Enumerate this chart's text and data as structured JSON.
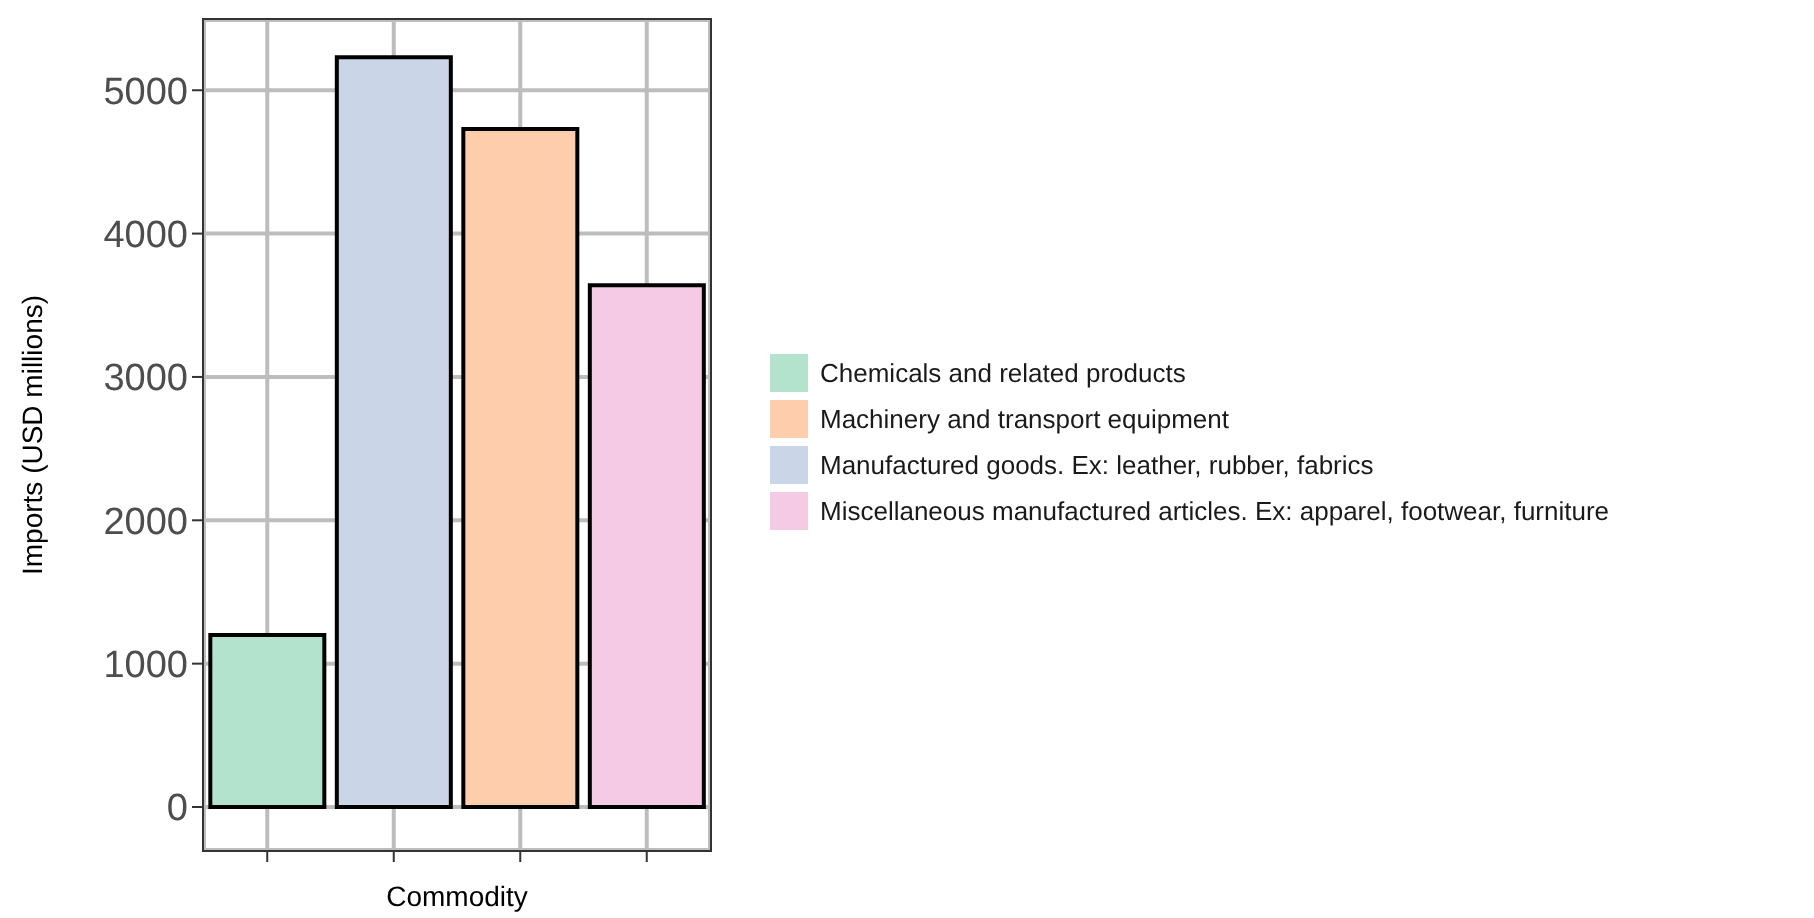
{
  "chart_data": {
    "type": "bar",
    "xlabel": "Commodity",
    "ylabel": "Imports (USD millions)",
    "categories": [
      null,
      null,
      null,
      null
    ],
    "stacked": true,
    "series": [
      {
        "name": "Chemicals and related products",
        "color": "#b3e2cd",
        "values": [
          1200,
          null,
          null,
          null
        ]
      },
      {
        "name": "Machinery and transport equipment",
        "color": "#fdcdac",
        "values": [
          null,
          null,
          4730,
          null
        ]
      },
      {
        "name": "Manufactured goods. Ex: leather, rubber, fabrics",
        "color": "#cbd5e8",
        "values": [
          null,
          5230,
          null,
          null
        ]
      },
      {
        "name": "Miscellaneous manufactured articles. Ex: apparel, footwear, furniture",
        "color": "#f4cae4",
        "values": [
          null,
          null,
          null,
          3640
        ]
      }
    ],
    "ylim": [
      -300,
      5490
    ],
    "yticks": [
      0,
      1000,
      2000,
      3000,
      4000,
      5000
    ],
    "grid": true,
    "legend": "right"
  }
}
